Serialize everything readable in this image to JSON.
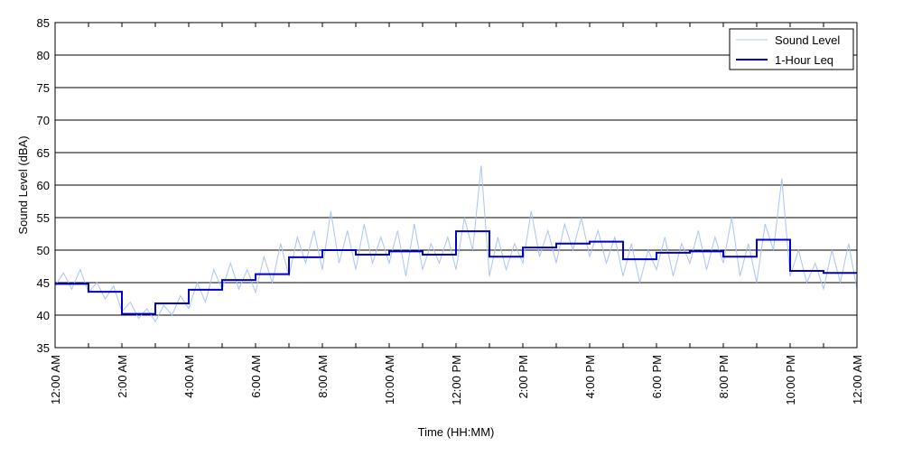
{
  "chart_data": {
    "type": "line",
    "title": "",
    "xlabel": "Time (HH:MM)",
    "ylabel": "Sound Level (dBA)",
    "ylim": [
      35,
      85
    ],
    "xlim": [
      0,
      24
    ],
    "y_ticks": [
      35,
      40,
      45,
      50,
      55,
      60,
      65,
      70,
      75,
      80,
      85
    ],
    "x_ticks": [
      0,
      1,
      2,
      3,
      4,
      5,
      6,
      7,
      8,
      9,
      10,
      11,
      12,
      13,
      14,
      15,
      16,
      17,
      18,
      19,
      20,
      21,
      22,
      23,
      24
    ],
    "x_tick_labels": [
      {
        "x": 0,
        "label": "12:00 AM"
      },
      {
        "x": 2,
        "label": "2:00 AM"
      },
      {
        "x": 4,
        "label": "4:00 AM"
      },
      {
        "x": 6,
        "label": "6:00 AM"
      },
      {
        "x": 8,
        "label": "8:00 AM"
      },
      {
        "x": 10,
        "label": "10:00 AM"
      },
      {
        "x": 12,
        "label": "12:00 PM"
      },
      {
        "x": 14,
        "label": "2:00 PM"
      },
      {
        "x": 16,
        "label": "4:00 PM"
      },
      {
        "x": 18,
        "label": "6:00 PM"
      },
      {
        "x": 20,
        "label": "8:00 PM"
      },
      {
        "x": 22,
        "label": "10:00 PM"
      },
      {
        "x": 24,
        "label": "12:00 AM"
      }
    ],
    "grid": "horizontal",
    "legend_position": "top-right",
    "series": [
      {
        "name": "Sound Level",
        "color": "#a9c4f5",
        "style": "thin-line",
        "x": [
          0,
          0.25,
          0.5,
          0.75,
          1,
          1.25,
          1.5,
          1.75,
          2,
          2.25,
          2.5,
          2.75,
          3,
          3.25,
          3.5,
          3.75,
          4,
          4.25,
          4.5,
          4.75,
          5,
          5.25,
          5.5,
          5.75,
          6,
          6.25,
          6.5,
          6.75,
          7,
          7.25,
          7.5,
          7.75,
          8,
          8.25,
          8.5,
          8.75,
          9,
          9.25,
          9.5,
          9.75,
          10,
          10.25,
          10.5,
          10.75,
          11,
          11.25,
          11.5,
          11.75,
          12,
          12.25,
          12.5,
          12.75,
          13,
          13.25,
          13.5,
          13.75,
          14,
          14.25,
          14.5,
          14.75,
          15,
          15.25,
          15.5,
          15.75,
          16,
          16.25,
          16.5,
          16.75,
          17,
          17.25,
          17.5,
          17.75,
          18,
          18.25,
          18.5,
          18.75,
          19,
          19.25,
          19.5,
          19.75,
          20,
          20.25,
          20.5,
          20.75,
          21,
          21.25,
          21.5,
          21.75,
          22,
          22.25,
          22.5,
          22.75,
          23,
          23.25,
          23.5,
          23.75,
          24
        ],
        "y": [
          44.5,
          46.5,
          44,
          47,
          43.5,
          45,
          42.5,
          44.5,
          40.5,
          42,
          39.5,
          41,
          39,
          41.5,
          40,
          43,
          41,
          45,
          42,
          47,
          44,
          48,
          44,
          47,
          43.5,
          49,
          45,
          51,
          46,
          52,
          48,
          53,
          47,
          56,
          48,
          53,
          47,
          54,
          48,
          52,
          48,
          53,
          46,
          54,
          47,
          51,
          48,
          52,
          47,
          55,
          50,
          63,
          46,
          52,
          47,
          51,
          48,
          56,
          49,
          53,
          48,
          54,
          50,
          55,
          49,
          53,
          48,
          52,
          46,
          51,
          45,
          50,
          47,
          52,
          46,
          51,
          48,
          53,
          47,
          52,
          48,
          55,
          46,
          51,
          45,
          54,
          50,
          61,
          46,
          50,
          45,
          48,
          44,
          50,
          45,
          51,
          44
        ]
      },
      {
        "name": "1-Hour Leq",
        "color": "#0000cc",
        "style": "step",
        "x": [
          0,
          1,
          2,
          3,
          4,
          5,
          6,
          7,
          8,
          9,
          10,
          11,
          12,
          13,
          14,
          15,
          16,
          17,
          18,
          19,
          20,
          21,
          22,
          23
        ],
        "y": [
          44.8,
          43.6,
          40.2,
          41.8,
          43.9,
          45.4,
          46.3,
          48.9,
          50.0,
          49.3,
          49.8,
          49.3,
          52.9,
          49.0,
          50.4,
          51.0,
          51.3,
          48.6,
          49.6,
          49.8,
          49.0,
          51.6,
          46.8,
          46.5
        ]
      }
    ]
  }
}
